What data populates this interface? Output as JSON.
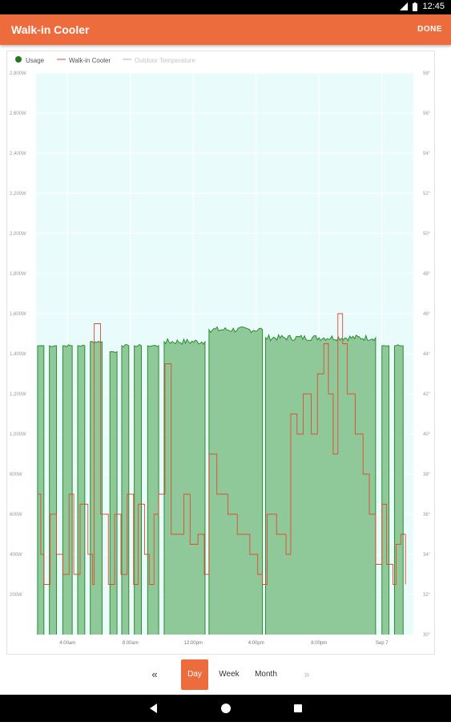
{
  "status": {
    "time": "12:45"
  },
  "appbar": {
    "title": "Walk-in Cooler",
    "done_label": "DONE"
  },
  "chart_data": {
    "type": "area",
    "legend": [
      "Usage",
      "Walk-in Cooler",
      "Outdoor Temperature"
    ],
    "legend_position": "top-left",
    "grid": true,
    "colors": {
      "usage": "#2e8b2e",
      "usage_fill": "#8fc99a",
      "cooler": "#e24a33",
      "outdoor": "#cccccc",
      "plot_bg": "#e9fbfb"
    },
    "x_ticks": [
      "4:00am",
      "8:00am",
      "12:00pm",
      "4:00pm",
      "8:00pm",
      "Sep 7"
    ],
    "x_range_hours": [
      0,
      24
    ],
    "x_tick_hours": [
      2,
      6,
      10,
      14,
      18,
      22
    ],
    "left_axis": {
      "ticks": [
        "2,800W",
        "2,600W",
        "2,400W",
        "2,200W",
        "2,000W",
        "1,800W",
        "1,600W",
        "1,400W",
        "1,200W",
        "1,000W",
        "800W",
        "600W",
        "400W",
        "200W"
      ],
      "range": [
        0,
        2800
      ]
    },
    "right_axis": {
      "ticks": [
        "58°",
        "56°",
        "54°",
        "52°",
        "50°",
        "48°",
        "46°",
        "44°",
        "42°",
        "40°",
        "38°",
        "36°",
        "34°",
        "32°",
        "30°"
      ],
      "range": [
        30,
        58
      ]
    },
    "usage_on_intervals_hours": [
      [
        0.1,
        0.5
      ],
      [
        0.85,
        1.3
      ],
      [
        1.7,
        2.3
      ],
      [
        2.65,
        3.1
      ],
      [
        3.45,
        4.2
      ],
      [
        4.7,
        5.15
      ],
      [
        5.45,
        5.9
      ],
      [
        6.25,
        6.7
      ],
      [
        7.1,
        7.8
      ],
      [
        8.15,
        10.75
      ],
      [
        11.0,
        14.4
      ],
      [
        14.6,
        21.6
      ],
      [
        22.0,
        22.45
      ],
      [
        22.8,
        23.35
      ]
    ],
    "usage_levels_w": [
      {
        "start": 0.1,
        "end": 0.5,
        "w": 1440
      },
      {
        "start": 0.85,
        "end": 1.3,
        "w": 1440
      },
      {
        "start": 1.7,
        "end": 2.3,
        "w": 1440
      },
      {
        "start": 2.65,
        "end": 3.1,
        "w": 1440
      },
      {
        "start": 3.45,
        "end": 4.2,
        "w": 1460
      },
      {
        "start": 4.7,
        "end": 5.15,
        "w": 1410
      },
      {
        "start": 5.45,
        "end": 5.9,
        "w": 1440
      },
      {
        "start": 6.25,
        "end": 6.7,
        "w": 1440
      },
      {
        "start": 7.1,
        "end": 7.8,
        "w": 1440
      },
      {
        "start": 8.15,
        "end": 10.75,
        "w": 1460
      },
      {
        "start": 11.0,
        "end": 14.4,
        "w": 1520
      },
      {
        "start": 14.6,
        "end": 21.6,
        "w": 1480
      },
      {
        "start": 22.0,
        "end": 22.45,
        "w": 1440
      },
      {
        "start": 22.8,
        "end": 23.35,
        "w": 1440
      }
    ],
    "cooler_temp_points": [
      [
        0.1,
        37
      ],
      [
        0.3,
        34
      ],
      [
        0.5,
        32.5
      ],
      [
        0.9,
        36
      ],
      [
        1.3,
        34
      ],
      [
        1.7,
        33
      ],
      [
        2.1,
        37
      ],
      [
        2.4,
        33
      ],
      [
        2.8,
        36.5
      ],
      [
        3.3,
        34
      ],
      [
        3.6,
        32.5
      ],
      [
        3.7,
        45.5
      ],
      [
        4.1,
        36
      ],
      [
        4.6,
        32.5
      ],
      [
        5.0,
        36
      ],
      [
        5.4,
        33
      ],
      [
        5.8,
        37
      ],
      [
        6.2,
        32.5
      ],
      [
        6.5,
        36.5
      ],
      [
        6.9,
        34
      ],
      [
        7.2,
        32.5
      ],
      [
        7.5,
        36
      ],
      [
        7.8,
        37
      ],
      [
        8.2,
        43.5
      ],
      [
        8.6,
        35
      ],
      [
        9.0,
        35
      ],
      [
        9.4,
        37
      ],
      [
        9.8,
        34.5
      ],
      [
        10.3,
        35
      ],
      [
        10.7,
        33
      ],
      [
        11.0,
        39
      ],
      [
        11.5,
        37
      ],
      [
        12.2,
        36
      ],
      [
        12.8,
        35
      ],
      [
        13.2,
        35
      ],
      [
        13.6,
        34
      ],
      [
        14.1,
        33
      ],
      [
        14.4,
        32.5
      ],
      [
        14.7,
        36
      ],
      [
        15.3,
        35
      ],
      [
        15.9,
        34
      ],
      [
        16.2,
        41
      ],
      [
        16.6,
        40
      ],
      [
        17.0,
        42
      ],
      [
        17.5,
        40
      ],
      [
        17.9,
        43
      ],
      [
        18.3,
        44.5
      ],
      [
        18.6,
        42
      ],
      [
        18.9,
        39
      ],
      [
        19.2,
        46
      ],
      [
        19.5,
        44.5
      ],
      [
        19.8,
        42
      ],
      [
        20.3,
        40
      ],
      [
        20.8,
        38
      ],
      [
        21.2,
        36
      ],
      [
        21.6,
        33.5
      ],
      [
        22.0,
        36.5
      ],
      [
        22.3,
        33.5
      ],
      [
        22.7,
        32.5
      ],
      [
        22.9,
        34.5
      ],
      [
        23.2,
        35
      ],
      [
        23.5,
        32.5
      ]
    ]
  },
  "controls": {
    "prev_label": "«",
    "day_label": "Day",
    "week_label": "Week",
    "month_label": "Month",
    "next_label": "»"
  }
}
